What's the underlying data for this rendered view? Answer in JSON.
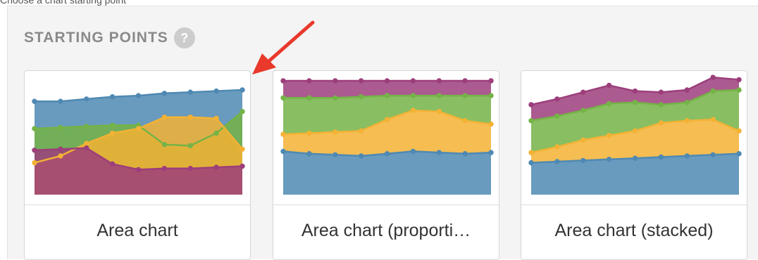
{
  "section": {
    "title": "STARTING POINTS",
    "help_icon": "question-mark",
    "help_glyph": "?"
  },
  "top_caption": "Choose a chart starting point",
  "annotation": {
    "type": "red-arrow",
    "color": "#e8392b"
  },
  "colors": {
    "blue": "#4f89b3",
    "green": "#74b347",
    "yellow": "#f3b234",
    "purple": "#9c3e7b"
  },
  "cards": [
    {
      "label": "Area chart",
      "chart_data": {
        "type": "area",
        "mode": "overlapping",
        "x": [
          0,
          1,
          2,
          3,
          4,
          5,
          6,
          7,
          8
        ],
        "ylim": [
          0,
          1
        ],
        "series": [
          {
            "color": "blue",
            "values": [
              0.82,
              0.82,
              0.84,
              0.86,
              0.87,
              0.89,
              0.9,
              0.91,
              0.92
            ]
          },
          {
            "color": "green",
            "values": [
              0.58,
              0.59,
              0.6,
              0.61,
              0.61,
              0.44,
              0.43,
              0.54,
              0.73
            ]
          },
          {
            "color": "yellow",
            "values": [
              0.28,
              0.34,
              0.45,
              0.54,
              0.58,
              0.68,
              0.68,
              0.67,
              0.4
            ]
          },
          {
            "color": "purple",
            "values": [
              0.39,
              0.4,
              0.41,
              0.27,
              0.22,
              0.23,
              0.23,
              0.24,
              0.25
            ]
          }
        ]
      }
    },
    {
      "label": "Area chart (proporti…",
      "chart_data": {
        "type": "area",
        "mode": "proportional",
        "x": [
          0,
          1,
          2,
          3,
          4,
          5,
          6,
          7,
          8
        ],
        "ylim": [
          0,
          1
        ],
        "series": [
          {
            "color": "blue",
            "values": [
              0.38,
              0.36,
              0.35,
              0.34,
              0.36,
              0.38,
              0.37,
              0.36,
              0.37
            ]
          },
          {
            "color": "yellow",
            "values": [
              0.15,
              0.18,
              0.2,
              0.22,
              0.3,
              0.36,
              0.36,
              0.29,
              0.25
            ]
          },
          {
            "color": "green",
            "values": [
              0.32,
              0.31,
              0.3,
              0.3,
              0.21,
              0.13,
              0.14,
              0.22,
              0.25
            ]
          },
          {
            "color": "purple",
            "values": [
              0.15,
              0.15,
              0.15,
              0.14,
              0.13,
              0.13,
              0.13,
              0.13,
              0.13
            ]
          }
        ]
      }
    },
    {
      "label": "Area chart (stacked)",
      "chart_data": {
        "type": "area",
        "mode": "stacked",
        "x": [
          0,
          1,
          2,
          3,
          4,
          5,
          6,
          7,
          8
        ],
        "ylim": [
          0,
          1
        ],
        "series": [
          {
            "color": "blue",
            "values": [
              0.28,
              0.29,
              0.3,
              0.31,
              0.32,
              0.33,
              0.34,
              0.35,
              0.36
            ]
          },
          {
            "color": "yellow",
            "values": [
              0.09,
              0.13,
              0.18,
              0.21,
              0.24,
              0.3,
              0.31,
              0.31,
              0.2
            ]
          },
          {
            "color": "green",
            "values": [
              0.28,
              0.27,
              0.26,
              0.28,
              0.25,
              0.16,
              0.16,
              0.25,
              0.36
            ]
          },
          {
            "color": "purple",
            "values": [
              0.14,
              0.15,
              0.16,
              0.16,
              0.1,
              0.11,
              0.11,
              0.12,
              0.09
            ]
          }
        ]
      }
    }
  ]
}
